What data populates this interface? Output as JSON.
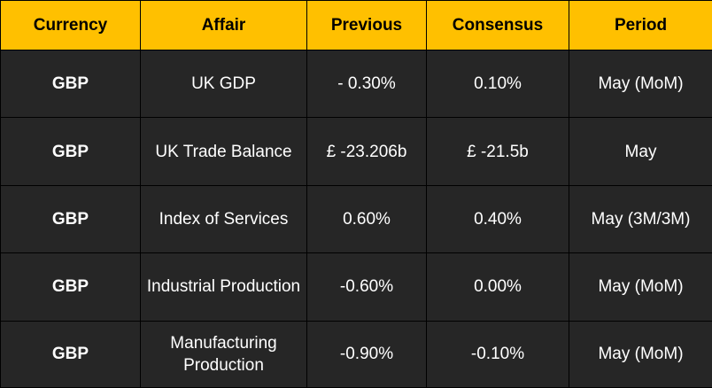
{
  "headers": {
    "currency": "Currency",
    "affair": "Affair",
    "previous": "Previous",
    "consensus": "Consensus",
    "period": "Period"
  },
  "rows": [
    {
      "currency": "GBP",
      "affair": "UK GDP",
      "previous": "- 0.30%",
      "consensus": "0.10%",
      "period": "May (MoM)"
    },
    {
      "currency": "GBP",
      "affair": "UK Trade Balance",
      "previous": "£ -23.206b",
      "consensus": "£ -21.5b",
      "period": "May"
    },
    {
      "currency": "GBP",
      "affair": "Index of Services",
      "previous": "0.60%",
      "consensus": "0.40%",
      "period": "May (3M/3M)"
    },
    {
      "currency": "GBP",
      "affair": "Industrial Production",
      "previous": "-0.60%",
      "consensus": "0.00%",
      "period": "May (MoM)"
    },
    {
      "currency": "GBP",
      "affair": "Manufacturing Production",
      "previous": "-0.90%",
      "consensus": "-0.10%",
      "period": "May (MoM)"
    }
  ],
  "colors": {
    "header_background": "#FFC000",
    "row_background": "#262626",
    "grid_lines": "#000000",
    "header_text": "#000000",
    "body_text": "#FFFFFF"
  }
}
